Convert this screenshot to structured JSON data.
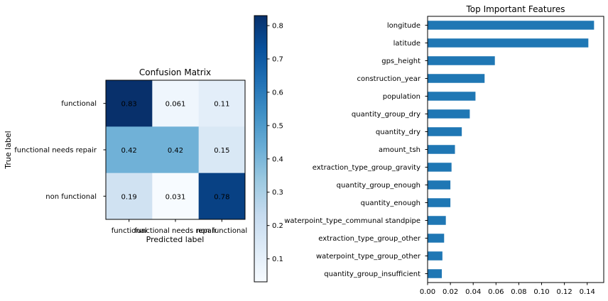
{
  "chart_data": [
    {
      "type": "heatmap",
      "title": "Confusion Matrix",
      "xlabel": "Predicted label",
      "ylabel": "True label",
      "x_categories": [
        "functional",
        "functional needs repair",
        "non functional"
      ],
      "y_categories": [
        "functional",
        "functional needs repair",
        "non functional"
      ],
      "values": [
        [
          0.83,
          0.061,
          0.11
        ],
        [
          0.42,
          0.42,
          0.15
        ],
        [
          0.19,
          0.031,
          0.78
        ]
      ],
      "value_labels": [
        [
          "0.83",
          "0.061",
          "0.11"
        ],
        [
          "0.42",
          "0.42",
          "0.15"
        ],
        [
          "0.19",
          "0.031",
          "0.78"
        ]
      ],
      "colormap": "Blues",
      "colorbar": {
        "range": [
          0.031,
          0.83
        ],
        "ticks": [
          0.1,
          0.2,
          0.3,
          0.4,
          0.5,
          0.6,
          0.7,
          0.8
        ],
        "tick_labels": [
          "0.1",
          "0.2",
          "0.3",
          "0.4",
          "0.5",
          "0.6",
          "0.7",
          "0.8"
        ]
      },
      "grid": false
    },
    {
      "type": "bar",
      "orientation": "horizontal",
      "title": "Top Important Features",
      "xlabel": "",
      "ylabel": "",
      "categories": [
        "longitude",
        "latitude",
        "gps_height",
        "construction_year",
        "population",
        "quantity_group_dry",
        "quantity_dry",
        "amount_tsh",
        "extraction_type_group_gravity",
        "quantity_group_enough",
        "quantity_enough",
        "waterpoint_type_communal standpipe",
        "extraction_type_group_other",
        "waterpoint_type_group_other",
        "quantity_group_insufficient"
      ],
      "values": [
        0.146,
        0.141,
        0.059,
        0.05,
        0.042,
        0.037,
        0.03,
        0.024,
        0.021,
        0.02,
        0.02,
        0.016,
        0.0145,
        0.013,
        0.0125
      ],
      "xlim": [
        0,
        0.1545
      ],
      "xticks": [
        0,
        0.02,
        0.04,
        0.06,
        0.08,
        0.1,
        0.12,
        0.14
      ],
      "xtick_labels": [
        "0.00",
        "0.02",
        "0.04",
        "0.06",
        "0.08",
        "0.10",
        "0.12",
        "0.14"
      ],
      "bar_color": "#1f77b4",
      "grid": false
    }
  ]
}
